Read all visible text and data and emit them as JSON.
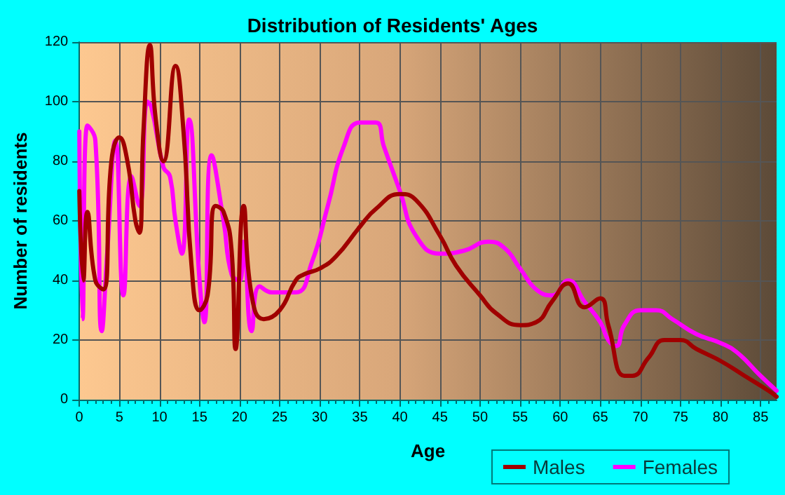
{
  "chart_data": {
    "type": "line",
    "title": "Distribution of Residents' Ages",
    "xlabel": "Age",
    "ylabel": "Number of residents",
    "xlim": [
      0,
      87
    ],
    "xticks": [
      0,
      5,
      10,
      15,
      20,
      25,
      30,
      35,
      40,
      45,
      50,
      55,
      60,
      65,
      70,
      75,
      80,
      85
    ],
    "ylim": [
      0,
      120
    ],
    "yticks": [
      0,
      20,
      40,
      60,
      80,
      100,
      120
    ],
    "grid": true,
    "legend": "bottom right",
    "marker": "none",
    "line_style": "solid",
    "series": [
      {
        "name": "Males",
        "color": "#a00000",
        "x": [
          0,
          0.5,
          1,
          2,
          3,
          4,
          5,
          6,
          7,
          7.5,
          8,
          8.8,
          9.5,
          10.5,
          12,
          13,
          14,
          15,
          16,
          17,
          18,
          19,
          19.5,
          20.5,
          21.5,
          23,
          25,
          27,
          28,
          30,
          32,
          35,
          37,
          40,
          42,
          45,
          47,
          50,
          52,
          55,
          57,
          59,
          61,
          63,
          65,
          66,
          68,
          69,
          71,
          73,
          75,
          77,
          80,
          83,
          86,
          87
        ],
        "values": [
          70,
          40,
          63,
          40,
          37,
          80,
          88,
          80,
          60,
          56,
          90,
          119,
          95,
          80,
          112,
          90,
          45,
          30,
          35,
          65,
          63,
          50,
          17,
          65,
          35,
          27,
          30,
          40,
          42,
          44,
          48,
          58,
          64,
          69,
          67,
          55,
          45,
          35,
          29,
          25,
          26,
          33,
          39,
          31,
          34,
          25,
          8,
          8,
          14,
          20,
          20,
          17,
          13,
          8,
          3,
          1
        ]
      },
      {
        "name": "Females",
        "color": "#ff00ff",
        "x": [
          0,
          0.4,
          1,
          2,
          2.8,
          3.5,
          4.5,
          5.5,
          6.5,
          7.5,
          8.5,
          9,
          10.5,
          11.3,
          12,
          12.8,
          13.7,
          15,
          15.6,
          16.5,
          18,
          19,
          20,
          20.5,
          21.5,
          22.5,
          24,
          27,
          29,
          31,
          33,
          35,
          37,
          38,
          40,
          42,
          45,
          48,
          51,
          53,
          55,
          57,
          59,
          61,
          63,
          65,
          66,
          67,
          68,
          70,
          72,
          74,
          77,
          80,
          82,
          85,
          87
        ],
        "values": [
          90,
          27,
          92,
          87,
          23,
          50,
          87,
          35,
          75,
          65,
          100,
          98,
          78,
          75,
          60,
          49,
          94,
          40,
          26,
          82,
          60,
          42,
          40,
          53,
          23,
          38,
          36,
          36,
          46,
          65,
          85,
          93,
          93,
          85,
          70,
          55,
          49,
          50,
          53,
          51,
          44,
          37,
          35,
          40,
          33,
          26,
          20,
          18,
          25,
          30,
          30,
          27,
          22,
          19,
          16,
          8,
          3
        ]
      }
    ]
  }
}
